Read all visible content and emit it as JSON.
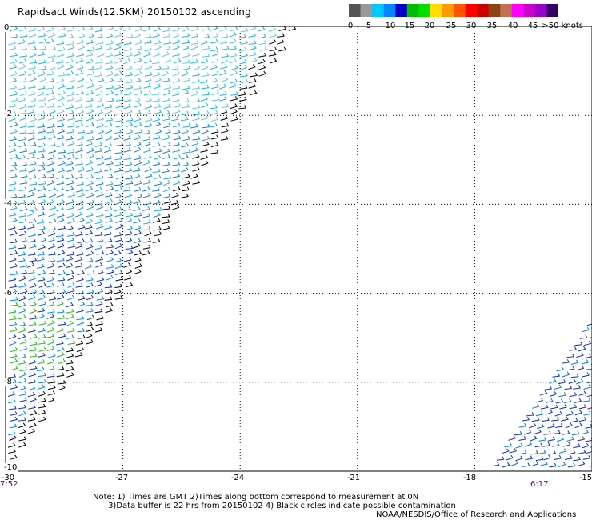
{
  "title": "Rapidsact Winds(12.5KM) 20150102 ascending",
  "colorbar": {
    "colors": [
      "#555555",
      "#999999",
      "#00c8ff",
      "#0088ff",
      "#0000cc",
      "#00bb00",
      "#00dd00",
      "#ffdd00",
      "#ff9900",
      "#ff5500",
      "#ff0000",
      "#cc0000",
      "#8b4513",
      "#c07050",
      "#ff00ff",
      "#cc00cc",
      "#9900cc",
      "#330066"
    ],
    "labels": [
      "0",
      "5",
      "10",
      "15",
      "20",
      "25",
      "30",
      "35",
      "40",
      "45",
      ">50 knots"
    ]
  },
  "x_ticks": [
    "-27",
    "-24",
    "-21",
    "-18",
    "-15"
  ],
  "y_labels": [
    "0",
    "-2",
    "-4",
    "-6",
    "-8",
    "-10"
  ],
  "corner_label": "-30",
  "times": {
    "left": "7:52",
    "right": "6:17"
  },
  "notes": [
    "Note: 1) Times are GMT 2)Times along bottom correspond to measurement at 0N",
    "      3)Data buffer is 22 hrs from 20150102 4) Black circles indicate possible contamination"
  ],
  "credit": "NOAA/NESDIS/Office of Research and Applications",
  "colors": {
    "time_label": "#800080",
    "grid": "#000000"
  },
  "chart_data": {
    "type": "wind-barb map",
    "xlim": [
      -30,
      -15
    ],
    "ylim": [
      -10,
      0
    ],
    "x_ticks": [
      -27,
      -24,
      -21,
      -18,
      -15
    ],
    "y_ticks": [
      0,
      -2,
      -4,
      -6,
      -8,
      -10
    ],
    "grid": true,
    "swaths": [
      {
        "name": "west swath",
        "lon_range": [
          -30,
          -22.5
        ],
        "lat_range": [
          -10,
          0
        ],
        "dominant_speed_knots": [
          5,
          15
        ]
      },
      {
        "name": "east swath",
        "lon_range": [
          -17.5,
          -15
        ],
        "lat_range": [
          -10,
          -6.5
        ],
        "dominant_speed_knots": [
          10,
          15
        ]
      }
    ]
  }
}
